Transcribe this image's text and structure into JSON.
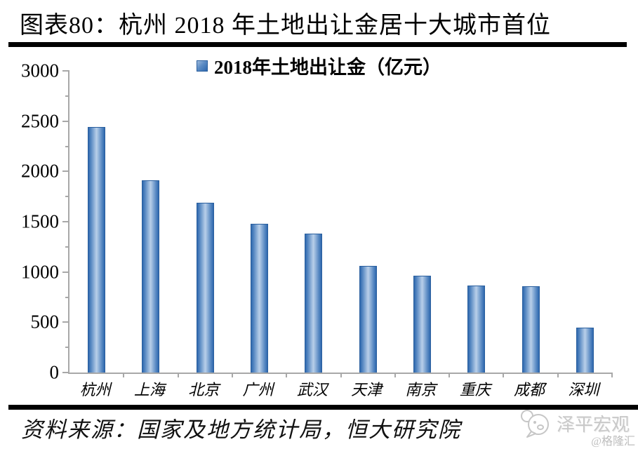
{
  "title": "图表80：杭州 2018 年土地出让金居十大城市首位",
  "legend_label": "2018年土地出让金（亿元）",
  "source": "资料来源：国家及地方统计局，恒大研究院",
  "watermark": {
    "name": "泽平宏观",
    "handle": "@格隆汇"
  },
  "colors": {
    "bar_edge": "#2e68ae",
    "bar_center": "#b9cfe9",
    "bar_border": "#2a5f9e",
    "axis": "#a8a8a8",
    "rule": "#000000",
    "watermark_gray": "#c9c9c9"
  },
  "chart_data": {
    "type": "bar",
    "title": "2018年土地出让金（亿元）",
    "categories": [
      "杭州",
      "上海",
      "北京",
      "广州",
      "武汉",
      "天津",
      "南京",
      "重庆",
      "成都",
      "深圳"
    ],
    "values": [
      2443,
      1910,
      1685,
      1477,
      1380,
      1058,
      965,
      868,
      855,
      450
    ],
    "xlabel": "",
    "ylabel": "",
    "ylim": [
      0,
      3000
    ],
    "ytick_step": 500,
    "yminor_step": 250,
    "grid": false,
    "legend_position": "top-center"
  }
}
